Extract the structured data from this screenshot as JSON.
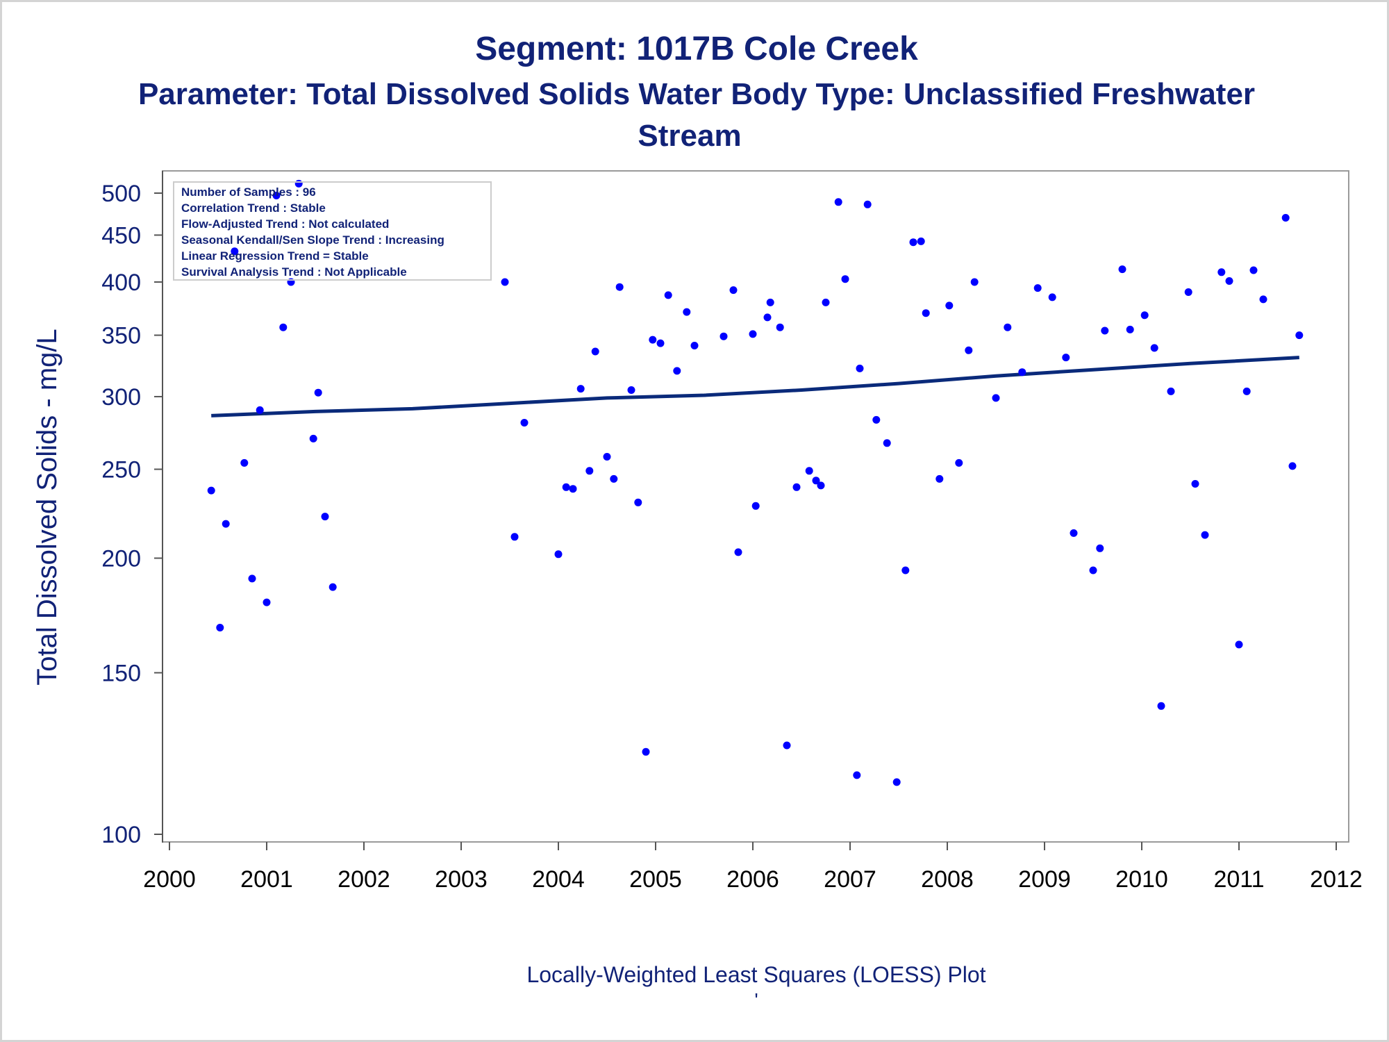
{
  "colors": {
    "text": "#112277",
    "point": "#0000ff",
    "trend_line": "#0a2a7a",
    "frame": "#9a9a9a",
    "axis": "#555555"
  },
  "title": "Segment: 1017B  Cole Creek",
  "subtitle_line1": "Parameter: Total Dissolved Solids   Water Body Type: Unclassified Freshwater",
  "subtitle_line2": "Stream",
  "footnote": "Locally-Weighted Least Squares (LOESS) Plot",
  "footnote_mark": "'",
  "stats_box": [
    "Number of Samples : 96",
    "Correlation Trend : Stable",
    "Flow-Adjusted Trend : Not calculated",
    "Seasonal Kendall/Sen Slope Trend : Increasing",
    "Linear Regression Trend = Stable",
    "Survival Analysis Trend : Not Applicable"
  ],
  "chart_data": {
    "type": "scatter",
    "xlabel": "",
    "ylabel": "Total Dissolved Solids - mg/L",
    "y_scale": "log",
    "xlim": [
      2000,
      2012
    ],
    "ylim": [
      100,
      520
    ],
    "x_ticks": [
      2000,
      2001,
      2002,
      2003,
      2004,
      2005,
      2006,
      2007,
      2008,
      2009,
      2010,
      2011,
      2012
    ],
    "x_tick_labels": [
      "2000",
      "2001",
      "2002",
      "2003",
      "2004",
      "2005",
      "2006",
      "2007",
      "2008",
      "2009",
      "2010",
      "2011",
      "2012"
    ],
    "y_ticks": [
      100,
      150,
      200,
      250,
      300,
      350,
      400,
      450,
      500
    ],
    "y_tick_labels": [
      "100",
      "150",
      "200",
      "250",
      "300",
      "350",
      "400",
      "450",
      "500"
    ],
    "points": [
      [
        2000.43,
        237
      ],
      [
        2000.52,
        168
      ],
      [
        2000.58,
        218
      ],
      [
        2000.67,
        432
      ],
      [
        2000.77,
        254
      ],
      [
        2000.85,
        190
      ],
      [
        2000.93,
        290
      ],
      [
        2001.0,
        179
      ],
      [
        2001.1,
        497
      ],
      [
        2001.17,
        357
      ],
      [
        2001.25,
        400
      ],
      [
        2001.33,
        512
      ],
      [
        2001.48,
        270
      ],
      [
        2001.53,
        303
      ],
      [
        2001.6,
        222
      ],
      [
        2001.68,
        186
      ],
      [
        2003.45,
        400
      ],
      [
        2003.55,
        211
      ],
      [
        2003.65,
        281
      ],
      [
        2004.0,
        202
      ],
      [
        2004.08,
        239
      ],
      [
        2004.15,
        238
      ],
      [
        2004.23,
        306
      ],
      [
        2004.32,
        249
      ],
      [
        2004.38,
        336
      ],
      [
        2004.5,
        258
      ],
      [
        2004.57,
        244
      ],
      [
        2004.63,
        395
      ],
      [
        2004.75,
        305
      ],
      [
        2004.82,
        230
      ],
      [
        2004.9,
        123
      ],
      [
        2004.97,
        346
      ],
      [
        2005.05,
        343
      ],
      [
        2005.13,
        387
      ],
      [
        2005.22,
        320
      ],
      [
        2005.32,
        371
      ],
      [
        2005.4,
        341
      ],
      [
        2005.7,
        349
      ],
      [
        2005.8,
        392
      ],
      [
        2005.85,
        203
      ],
      [
        2006.0,
        351
      ],
      [
        2006.03,
        228
      ],
      [
        2006.15,
        366
      ],
      [
        2006.18,
        380
      ],
      [
        2006.28,
        357
      ],
      [
        2006.35,
        125
      ],
      [
        2006.45,
        239
      ],
      [
        2006.58,
        249
      ],
      [
        2006.65,
        243
      ],
      [
        2006.7,
        240
      ],
      [
        2006.75,
        380
      ],
      [
        2006.88,
        489
      ],
      [
        2006.95,
        403
      ],
      [
        2007.07,
        116
      ],
      [
        2007.1,
        322
      ],
      [
        2007.18,
        486
      ],
      [
        2007.27,
        283
      ],
      [
        2007.38,
        267
      ],
      [
        2007.48,
        114
      ],
      [
        2007.57,
        194
      ],
      [
        2007.65,
        442
      ],
      [
        2007.73,
        443
      ],
      [
        2007.78,
        370
      ],
      [
        2007.92,
        244
      ],
      [
        2008.02,
        377
      ],
      [
        2008.12,
        254
      ],
      [
        2008.22,
        337
      ],
      [
        2008.28,
        400
      ],
      [
        2008.5,
        299
      ],
      [
        2008.62,
        357
      ],
      [
        2008.77,
        319
      ],
      [
        2008.93,
        394
      ],
      [
        2009.08,
        385
      ],
      [
        2009.22,
        331
      ],
      [
        2009.3,
        213
      ],
      [
        2009.5,
        194
      ],
      [
        2009.57,
        205
      ],
      [
        2009.62,
        354
      ],
      [
        2009.8,
        413
      ],
      [
        2009.88,
        355
      ],
      [
        2010.03,
        368
      ],
      [
        2010.13,
        339
      ],
      [
        2010.2,
        138
      ],
      [
        2010.3,
        304
      ],
      [
        2010.48,
        390
      ],
      [
        2010.55,
        241
      ],
      [
        2010.65,
        212
      ],
      [
        2010.82,
        410
      ],
      [
        2010.9,
        401
      ],
      [
        2011.0,
        161
      ],
      [
        2011.08,
        304
      ],
      [
        2011.15,
        412
      ],
      [
        2011.25,
        383
      ],
      [
        2011.48,
        470
      ],
      [
        2011.55,
        252
      ],
      [
        2011.62,
        350
      ]
    ],
    "trend_line": [
      [
        2000.43,
        286
      ],
      [
        2001.5,
        289
      ],
      [
        2002.5,
        291
      ],
      [
        2003.5,
        295
      ],
      [
        2004.5,
        299
      ],
      [
        2005.5,
        301
      ],
      [
        2006.5,
        305
      ],
      [
        2007.5,
        310
      ],
      [
        2008.5,
        316
      ],
      [
        2009.5,
        321
      ],
      [
        2010.5,
        326
      ],
      [
        2011.62,
        331
      ]
    ]
  }
}
